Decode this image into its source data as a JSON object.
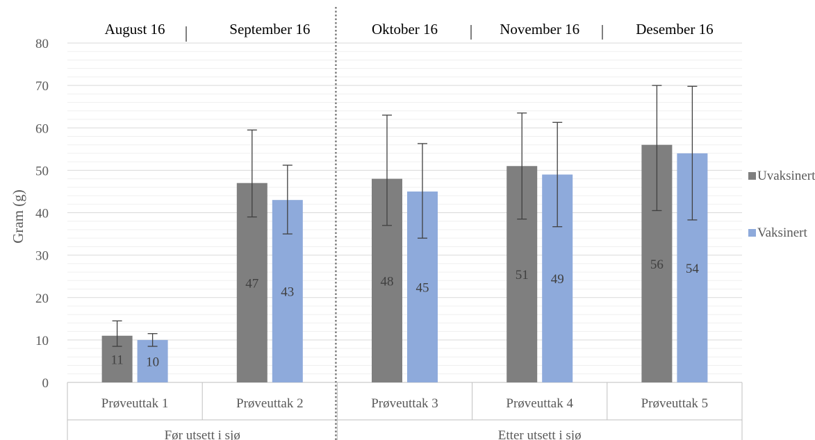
{
  "chart_data": {
    "type": "bar",
    "ylabel": "Gram (g)",
    "ylim": [
      0,
      80
    ],
    "y_ticks": [
      0,
      10,
      20,
      30,
      40,
      50,
      60,
      70,
      80
    ],
    "grid": true,
    "legend_position": "right",
    "categories": [
      "Prøveuttak 1",
      "Prøveuttak 2",
      "Prøveuttak 3",
      "Prøveuttak 4",
      "Prøveuttak 5"
    ],
    "groups": [
      {
        "label": "Før utsett i sjø",
        "categories": [
          "Prøveuttak 1",
          "Prøveuttak 2"
        ]
      },
      {
        "label": "Etter utsett i sjø",
        "categories": [
          "Prøveuttak 3",
          "Prøveuttak 4",
          "Prøveuttak 5"
        ]
      }
    ],
    "months": [
      "August 16",
      "September 16",
      "Oktober 16",
      "November 16",
      "Desember 16"
    ],
    "series": [
      {
        "name": "Uvaksinert",
        "color": "#7f7f7f",
        "values": [
          11,
          47,
          48,
          51,
          56
        ],
        "error_high": [
          14.5,
          59.5,
          63,
          63.5,
          70
        ],
        "error_low": [
          8.5,
          39,
          37,
          38.5,
          40.5
        ]
      },
      {
        "name": "Vaksinert",
        "color": "#8eaadb",
        "values": [
          10,
          43,
          45,
          49,
          54
        ],
        "error_high": [
          11.5,
          51.2,
          56.3,
          61.3,
          69.8
        ],
        "error_low": [
          8.5,
          35,
          34,
          36.7,
          38.3
        ]
      }
    ]
  }
}
